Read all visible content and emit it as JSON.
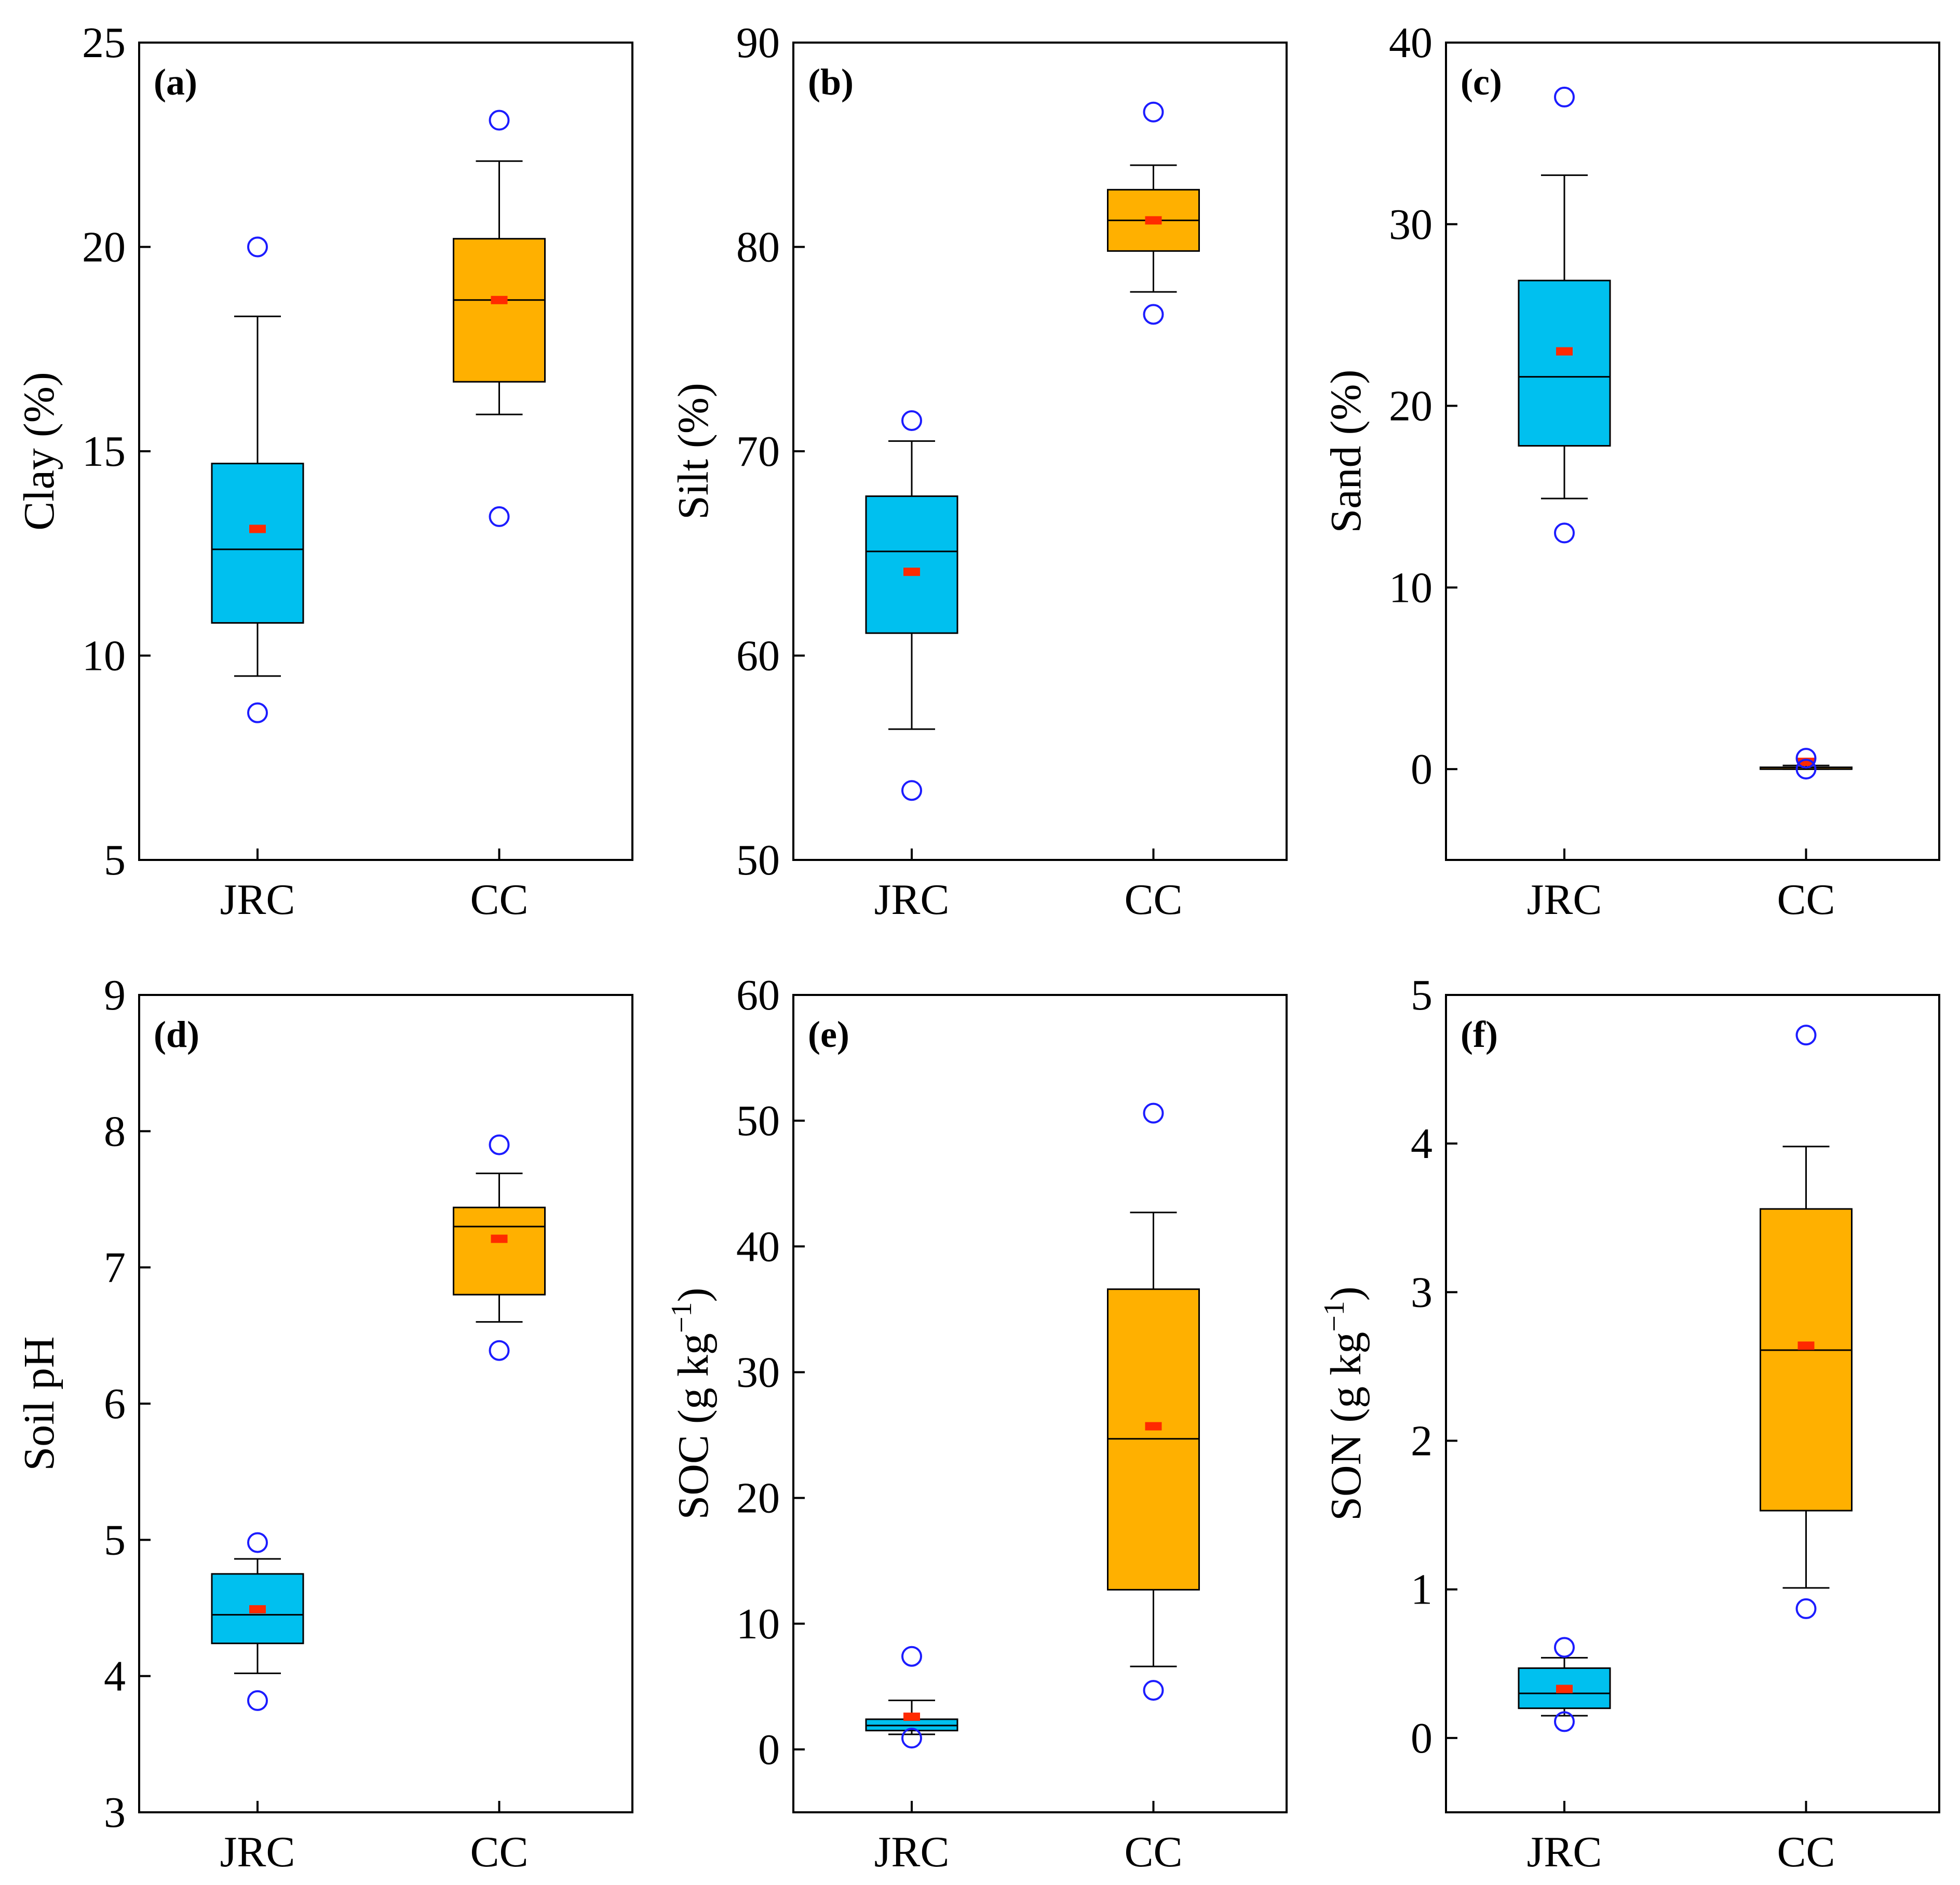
{
  "figure": {
    "panels_layout": "2 rows x 3 columns",
    "colors": {
      "JRC": "#00c0ef",
      "CC": "#ffb000",
      "outlier": "#1c1cff",
      "mean": "#ff2a00",
      "line": "#000000"
    }
  },
  "chart_data": [
    {
      "id": "a",
      "panel_label": "(a)",
      "type": "box",
      "ylabel": "Clay (%)",
      "ylabel_sup": "",
      "ylabel_end": "",
      "ylim": [
        5,
        25
      ],
      "yticks": [
        5,
        10,
        15,
        20,
        25
      ],
      "categories": [
        "JRC",
        "CC"
      ],
      "boxes": [
        {
          "name": "JRC",
          "whisker_low": 9.5,
          "q1": 10.8,
          "median": 12.6,
          "q3": 14.7,
          "whisker_high": 18.3,
          "mean": 13.1,
          "outliers": [
            8.6,
            20.0
          ]
        },
        {
          "name": "CC",
          "whisker_low": 15.9,
          "q1": 16.7,
          "median": 18.7,
          "q3": 20.2,
          "whisker_high": 22.1,
          "mean": 18.7,
          "outliers": [
            13.4,
            23.1
          ]
        }
      ]
    },
    {
      "id": "b",
      "panel_label": "(b)",
      "type": "box",
      "ylabel": "Silt (%)",
      "ylabel_sup": "",
      "ylabel_end": "",
      "ylim": [
        50,
        90
      ],
      "yticks": [
        50,
        60,
        70,
        80,
        90
      ],
      "categories": [
        "JRC",
        "CC"
      ],
      "boxes": [
        {
          "name": "JRC",
          "whisker_low": 56.4,
          "q1": 61.1,
          "median": 65.1,
          "q3": 67.8,
          "whisker_high": 70.5,
          "mean": 64.1,
          "outliers": [
            53.4,
            71.5
          ]
        },
        {
          "name": "CC",
          "whisker_low": 77.8,
          "q1": 79.8,
          "median": 81.3,
          "q3": 82.8,
          "whisker_high": 84.0,
          "mean": 81.3,
          "outliers": [
            76.7,
            86.6
          ]
        }
      ]
    },
    {
      "id": "c",
      "panel_label": "(c)",
      "type": "box",
      "ylabel": "Sand (%)",
      "ylabel_sup": "",
      "ylabel_end": "",
      "ylim": [
        -5,
        40
      ],
      "yticks": [
        0,
        10,
        20,
        30,
        40
      ],
      "categories": [
        "JRC",
        "CC"
      ],
      "boxes": [
        {
          "name": "JRC",
          "whisker_low": 14.9,
          "q1": 17.8,
          "median": 21.6,
          "q3": 26.9,
          "whisker_high": 32.7,
          "mean": 23.0,
          "outliers": [
            13.0,
            37.0
          ]
        },
        {
          "name": "CC",
          "whisker_low": 0.0,
          "q1": 0.0,
          "median": 0.0,
          "q3": 0.1,
          "whisker_high": 0.2,
          "mean": 0.4,
          "outliers": [
            0.0,
            0.6
          ]
        }
      ]
    },
    {
      "id": "d",
      "panel_label": "(d)",
      "type": "box",
      "ylabel": "Soil pH",
      "ylabel_sup": "",
      "ylabel_end": "",
      "ylim": [
        3,
        9
      ],
      "yticks": [
        3,
        4,
        5,
        6,
        7,
        8,
        9
      ],
      "categories": [
        "JRC",
        "CC"
      ],
      "boxes": [
        {
          "name": "JRC",
          "whisker_low": 4.02,
          "q1": 4.24,
          "median": 4.45,
          "q3": 4.75,
          "whisker_high": 4.86,
          "mean": 4.49,
          "outliers": [
            3.82,
            4.98
          ]
        },
        {
          "name": "CC",
          "whisker_low": 6.6,
          "q1": 6.8,
          "median": 7.3,
          "q3": 7.44,
          "whisker_high": 7.69,
          "mean": 7.21,
          "outliers": [
            6.39,
            7.9
          ]
        }
      ]
    },
    {
      "id": "e",
      "panel_label": "(e)",
      "type": "box",
      "ylabel": "SOC (g kg",
      "ylabel_sup": "−1",
      "ylabel_end": ")",
      "ylim": [
        -5,
        60
      ],
      "yticks": [
        0,
        10,
        20,
        30,
        40,
        50,
        60
      ],
      "categories": [
        "JRC",
        "CC"
      ],
      "boxes": [
        {
          "name": "JRC",
          "whisker_low": 1.2,
          "q1": 1.5,
          "median": 1.9,
          "q3": 2.4,
          "whisker_high": 3.9,
          "mean": 2.6,
          "outliers": [
            0.9,
            7.4
          ]
        },
        {
          "name": "CC",
          "whisker_low": 6.6,
          "q1": 12.7,
          "median": 24.7,
          "q3": 36.6,
          "whisker_high": 42.7,
          "mean": 25.7,
          "outliers": [
            4.7,
            50.6
          ]
        }
      ]
    },
    {
      "id": "f",
      "panel_label": "(f)",
      "type": "box",
      "ylabel": "SON (g kg",
      "ylabel_sup": "−1",
      "ylabel_end": ")",
      "ylim": [
        -0.5,
        5
      ],
      "yticks": [
        0,
        1,
        2,
        3,
        4,
        5
      ],
      "categories": [
        "JRC",
        "CC"
      ],
      "boxes": [
        {
          "name": "JRC",
          "whisker_low": 0.15,
          "q1": 0.2,
          "median": 0.3,
          "q3": 0.47,
          "whisker_high": 0.54,
          "mean": 0.33,
          "outliers": [
            0.11,
            0.61
          ]
        },
        {
          "name": "CC",
          "whisker_low": 1.01,
          "q1": 1.53,
          "median": 2.61,
          "q3": 3.56,
          "whisker_high": 3.98,
          "mean": 2.64,
          "outliers": [
            0.87,
            4.73
          ]
        }
      ]
    }
  ]
}
